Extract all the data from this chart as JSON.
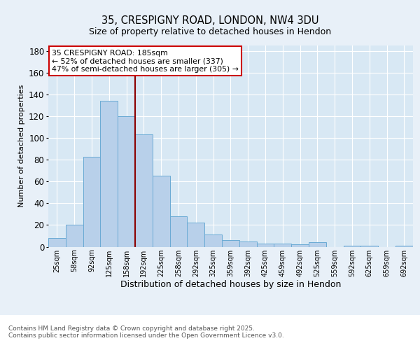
{
  "title1": "35, CRESPIGNY ROAD, LONDON, NW4 3DU",
  "title2": "Size of property relative to detached houses in Hendon",
  "xlabel": "Distribution of detached houses by size in Hendon",
  "ylabel": "Number of detached properties",
  "categories": [
    "25sqm",
    "58sqm",
    "92sqm",
    "125sqm",
    "158sqm",
    "192sqm",
    "225sqm",
    "258sqm",
    "292sqm",
    "325sqm",
    "359sqm",
    "392sqm",
    "425sqm",
    "459sqm",
    "492sqm",
    "525sqm",
    "559sqm",
    "592sqm",
    "625sqm",
    "659sqm",
    "692sqm"
  ],
  "values": [
    8,
    20,
    83,
    134,
    120,
    103,
    65,
    28,
    22,
    11,
    6,
    5,
    3,
    3,
    2,
    4,
    0,
    1,
    1,
    0,
    1
  ],
  "bar_color": "#b8d0ea",
  "bar_edge_color": "#6aaad4",
  "subject_line_index": 5,
  "subject_line_color": "#8b0000",
  "annotation_text": "35 CRESPIGNY ROAD: 185sqm\n← 52% of detached houses are smaller (337)\n47% of semi-detached houses are larger (305) →",
  "annotation_box_color": "#ffffff",
  "annotation_box_edge_color": "#cc0000",
  "ylim": [
    0,
    185
  ],
  "yticks": [
    0,
    20,
    40,
    60,
    80,
    100,
    120,
    140,
    160,
    180
  ],
  "footer_text": "Contains HM Land Registry data © Crown copyright and database right 2025.\nContains public sector information licensed under the Open Government Licence v3.0.",
  "bg_color": "#e8f0f8",
  "plot_bg_color": "#d8e8f4",
  "footer_bg_color": "#ffffff"
}
